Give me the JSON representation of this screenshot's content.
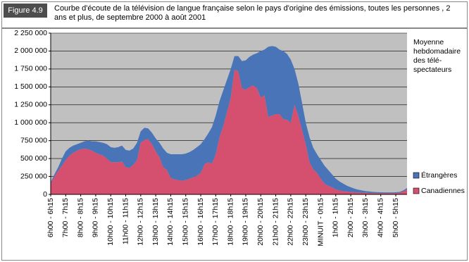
{
  "figure_label": "Figure 4.9",
  "chart_data": {
    "type": "stacked-area",
    "title": "Courbe d'écoute de la télévision de langue française selon le pays d'origine des émissions, toutes les personnes , 2 ans et plus, de septembre 2000 à août 2001",
    "legend_title": [
      "Moyenne",
      "hebdomadaire",
      "des télé-",
      "spectateurs"
    ],
    "legend_position": "right",
    "grid": true,
    "categories": [
      "6h00 - 6h15",
      null,
      null,
      null,
      "7h00 - 7h15",
      null,
      null,
      null,
      "8h00 - 8h15",
      null,
      null,
      null,
      "9h00 - 9h15",
      null,
      null,
      null,
      "10h00 - 10h15",
      null,
      null,
      null,
      "11h00 - 11h15",
      null,
      null,
      null,
      "12h00 - 12h15",
      null,
      null,
      null,
      "13h00 - 13h15",
      null,
      null,
      null,
      "14h00 - 14h15",
      null,
      null,
      null,
      "15h00 - 15h15",
      null,
      null,
      null,
      "16h00 - 16h15",
      null,
      null,
      null,
      "17h00 - 17h15",
      null,
      null,
      null,
      "18h00 - 18h15",
      null,
      null,
      null,
      "19h00 - 19h15",
      null,
      null,
      null,
      "20h00 - 20h15",
      null,
      null,
      null,
      "21h00 - 21h15",
      null,
      null,
      null,
      "22h00 - 22h15",
      null,
      null,
      null,
      "23h00 - 23h15",
      null,
      null,
      null,
      "MINUIT - 0h15",
      null,
      null,
      null,
      "1h00 - 1h15",
      null,
      null,
      null,
      "2h00 - 2h15",
      null,
      null,
      null,
      "3h00 - 3h15",
      null,
      null,
      null,
      "4h00 - 4h15",
      null,
      null,
      null,
      "5h00 - 5h15",
      null,
      null,
      null
    ],
    "series": [
      {
        "name": "Canadiennes",
        "color": "#d4506e",
        "values": [
          150000,
          250000,
          330000,
          400000,
          480000,
          540000,
          580000,
          610000,
          630000,
          640000,
          630000,
          610000,
          580000,
          560000,
          540000,
          500000,
          450000,
          450000,
          450000,
          460000,
          380000,
          370000,
          410000,
          480000,
          720000,
          760000,
          770000,
          700000,
          600000,
          520000,
          380000,
          340000,
          230000,
          210000,
          200000,
          190000,
          200000,
          220000,
          240000,
          260000,
          300000,
          420000,
          450000,
          430000,
          560000,
          800000,
          950000,
          1150000,
          1350000,
          1740000,
          1720000,
          1480000,
          1460000,
          1500000,
          1520000,
          1480000,
          1350000,
          1380000,
          1080000,
          1100000,
          1120000,
          1120000,
          1050000,
          1040000,
          1000000,
          1250000,
          1100000,
          900000,
          700000,
          450000,
          350000,
          300000,
          220000,
          150000,
          120000,
          100000,
          70000,
          55000,
          45000,
          40000,
          35000,
          30000,
          28000,
          25000,
          22000,
          20000,
          18000,
          17000,
          16000,
          16000,
          16000,
          17000,
          18000,
          22000,
          40000,
          70000
        ]
      },
      {
        "name": "Étrangères",
        "color": "#4a74b8",
        "values": [
          20000,
          30000,
          50000,
          100000,
          120000,
          110000,
          100000,
          90000,
          90000,
          100000,
          120000,
          130000,
          160000,
          170000,
          180000,
          200000,
          210000,
          200000,
          210000,
          220000,
          240000,
          240000,
          230000,
          240000,
          160000,
          170000,
          150000,
          160000,
          180000,
          200000,
          260000,
          240000,
          330000,
          350000,
          360000,
          370000,
          370000,
          370000,
          380000,
          400000,
          400000,
          350000,
          400000,
          510000,
          540000,
          500000,
          500000,
          450000,
          400000,
          190000,
          210000,
          380000,
          410000,
          420000,
          430000,
          490000,
          650000,
          640000,
          980000,
          970000,
          940000,
          900000,
          950000,
          920000,
          880000,
          500000,
          450000,
          380000,
          300000,
          350000,
          300000,
          260000,
          260000,
          250000,
          220000,
          180000,
          150000,
          125000,
          105000,
          80000,
          65000,
          50000,
          37000,
          30000,
          23000,
          20000,
          17000,
          15000,
          14000,
          12000,
          12000,
          11000,
          12000,
          13000,
          15000,
          20000
        ]
      }
    ],
    "ylim": [
      0,
      2250000
    ],
    "yticks": [
      0,
      {
        "value": 250000,
        "label": "250 000"
      },
      {
        "value": 500000,
        "label": "500 000"
      },
      {
        "value": 750000,
        "label": "750 000"
      },
      {
        "value": 1000000,
        "label": "1 000 000"
      },
      {
        "value": 1250000,
        "label": "1 250 000"
      },
      {
        "value": 1500000,
        "label": "1 500 000"
      },
      {
        "value": 1750000,
        "label": "1 750 000"
      },
      {
        "value": 2000000,
        "label": "2 000 000"
      },
      {
        "value": 2250000,
        "label": "2 250 000"
      }
    ]
  }
}
